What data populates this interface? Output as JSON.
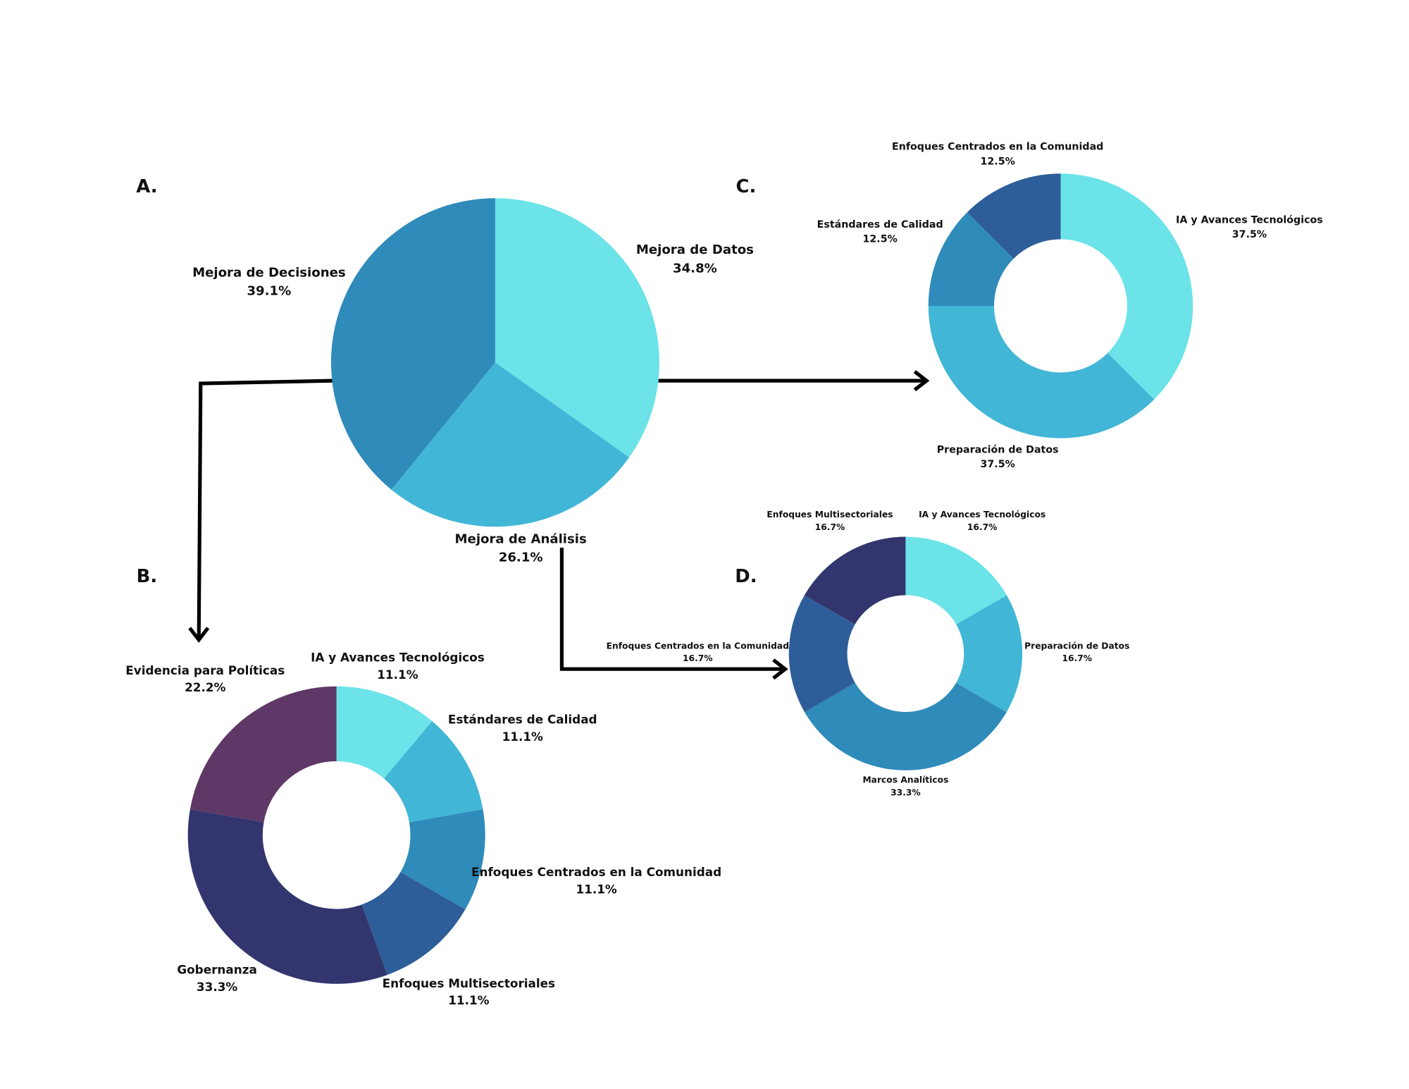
{
  "chart_data": [
    {
      "type": "pie",
      "title": "A.",
      "categories": [
        "Mejora de Datos",
        "Mejora de Análisis",
        "Mejora de Decisiones"
      ],
      "values": [
        34.8,
        26.1,
        39.1
      ],
      "value_labels": [
        "34.8%",
        "26.1%",
        "39.1%"
      ],
      "colors": [
        "#6be3e8",
        "#42b6d6",
        "#2e8bba"
      ]
    },
    {
      "type": "donut",
      "title": "B.",
      "categories": [
        "IA y Avances Tecnológicos",
        "Estándares de Calidad",
        "Enfoques Centrados en la Comunidad",
        "Enfoques Multisectoriales",
        "Gobernanza",
        "Evidencia para Políticas"
      ],
      "values": [
        11.1,
        11.1,
        11.1,
        11.1,
        33.3,
        22.2
      ],
      "value_labels": [
        "11.1%",
        "11.1%",
        "11.1%",
        "11.1%",
        "33.3%",
        "22.2%"
      ],
      "colors": [
        "#6be3e8",
        "#42b6d6",
        "#2e8bba",
        "#2e5e99",
        "#32356e",
        "#5e3866"
      ]
    },
    {
      "type": "donut",
      "title": "C.",
      "categories": [
        "IA y Avances Tecnológicos",
        "Preparación de Datos",
        "Estándares de Calidad",
        "Enfoques Centrados en la Comunidad"
      ],
      "values": [
        37.5,
        37.5,
        12.5,
        12.5
      ],
      "value_labels": [
        "37.5%",
        "37.5%",
        "12.5%",
        "12.5%"
      ],
      "colors": [
        "#6be3e8",
        "#42b6d6",
        "#2e8bba",
        "#2e5e99"
      ]
    },
    {
      "type": "donut",
      "title": "D.",
      "categories": [
        "IA y Avances Tecnológicos",
        "Preparación de Datos",
        "Marcos Analíticos",
        "Enfoques Centrados en la Comunidad",
        "Enfoques Multisectoriales"
      ],
      "values": [
        16.7,
        16.7,
        33.3,
        16.7,
        16.7
      ],
      "value_labels": [
        "16.7%",
        "16.7%",
        "33.3%",
        "16.7%",
        "16.7%"
      ],
      "colors": [
        "#6be3e8",
        "#42b6d6",
        "#2e8bba",
        "#2e5e99",
        "#32356e"
      ]
    }
  ]
}
